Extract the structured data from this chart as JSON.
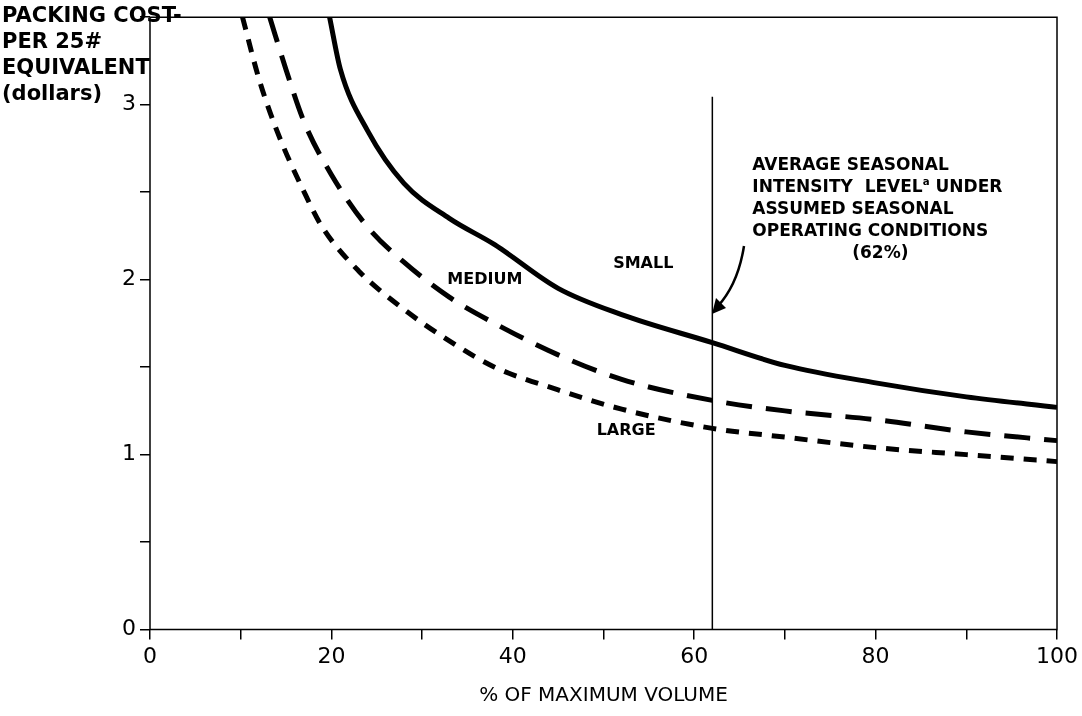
{
  "chart_data": {
    "type": "line",
    "xlabel": "% OF MAXIMUM VOLUME",
    "ylabel": "PACKING COST-\nPER 25#\nEQUIVALENT\n(dollars)",
    "xlim": [
      0,
      100
    ],
    "ylim": [
      0,
      3.5
    ],
    "xticks": [
      0,
      {
        "value": 10,
        "label": null
      },
      20,
      {
        "value": 30,
        "label": null
      },
      40,
      {
        "value": 50,
        "label": null
      },
      60,
      {
        "value": 70,
        "label": null
      },
      80,
      {
        "value": 90,
        "label": null
      },
      100
    ],
    "yticks": [
      0,
      {
        "value": 0.5,
        "label": null
      },
      1,
      {
        "value": 1.5,
        "label": null
      },
      2,
      {
        "value": 2.5,
        "label": null
      },
      3,
      {
        "value": 3.5,
        "label": null
      }
    ],
    "grid": false,
    "legend": false,
    "marker": "none",
    "series": [
      {
        "name": "SMALL",
        "color": "#000000",
        "line_style": "solid",
        "x": [
          19.8,
          21,
          24,
          28,
          33,
          38,
          45,
          52,
          62,
          70,
          80,
          90,
          100
        ],
        "values": [
          3.5,
          3.2,
          2.85,
          2.55,
          2.35,
          2.2,
          1.95,
          1.8,
          1.64,
          1.51,
          1.41,
          1.33,
          1.27
        ]
      },
      {
        "name": "MEDIUM",
        "color": "#000000",
        "line_style": "dashed",
        "x": [
          13.2,
          15,
          17,
          20,
          24,
          28,
          33,
          38,
          45,
          52,
          62,
          70,
          80,
          90,
          100
        ],
        "values": [
          3.5,
          3.2,
          2.9,
          2.6,
          2.3,
          2.1,
          1.9,
          1.75,
          1.57,
          1.43,
          1.31,
          1.25,
          1.2,
          1.13,
          1.08
        ]
      },
      {
        "name": "LARGE",
        "color": "#000000",
        "line_style": "dotted",
        "x": [
          10.2,
          12,
          14,
          17,
          19,
          23,
          28,
          33,
          38,
          45,
          52,
          62,
          70,
          80,
          90,
          100
        ],
        "values": [
          3.5,
          3.15,
          2.85,
          2.5,
          2.3,
          2.05,
          1.83,
          1.65,
          1.5,
          1.37,
          1.26,
          1.15,
          1.1,
          1.04,
          1.0,
          0.96
        ]
      }
    ],
    "ref_lines": [
      {
        "axis": "x",
        "value": 62,
        "label": "AVERAGE SEASONAL\nINTENSITY  LEVEL$^{a}$ UNDER\nASSUMED SEASONAL\nOPERATING CONDITIONS\n(62%)",
        "color": "#000000",
        "line_style": "solid"
      }
    ]
  }
}
